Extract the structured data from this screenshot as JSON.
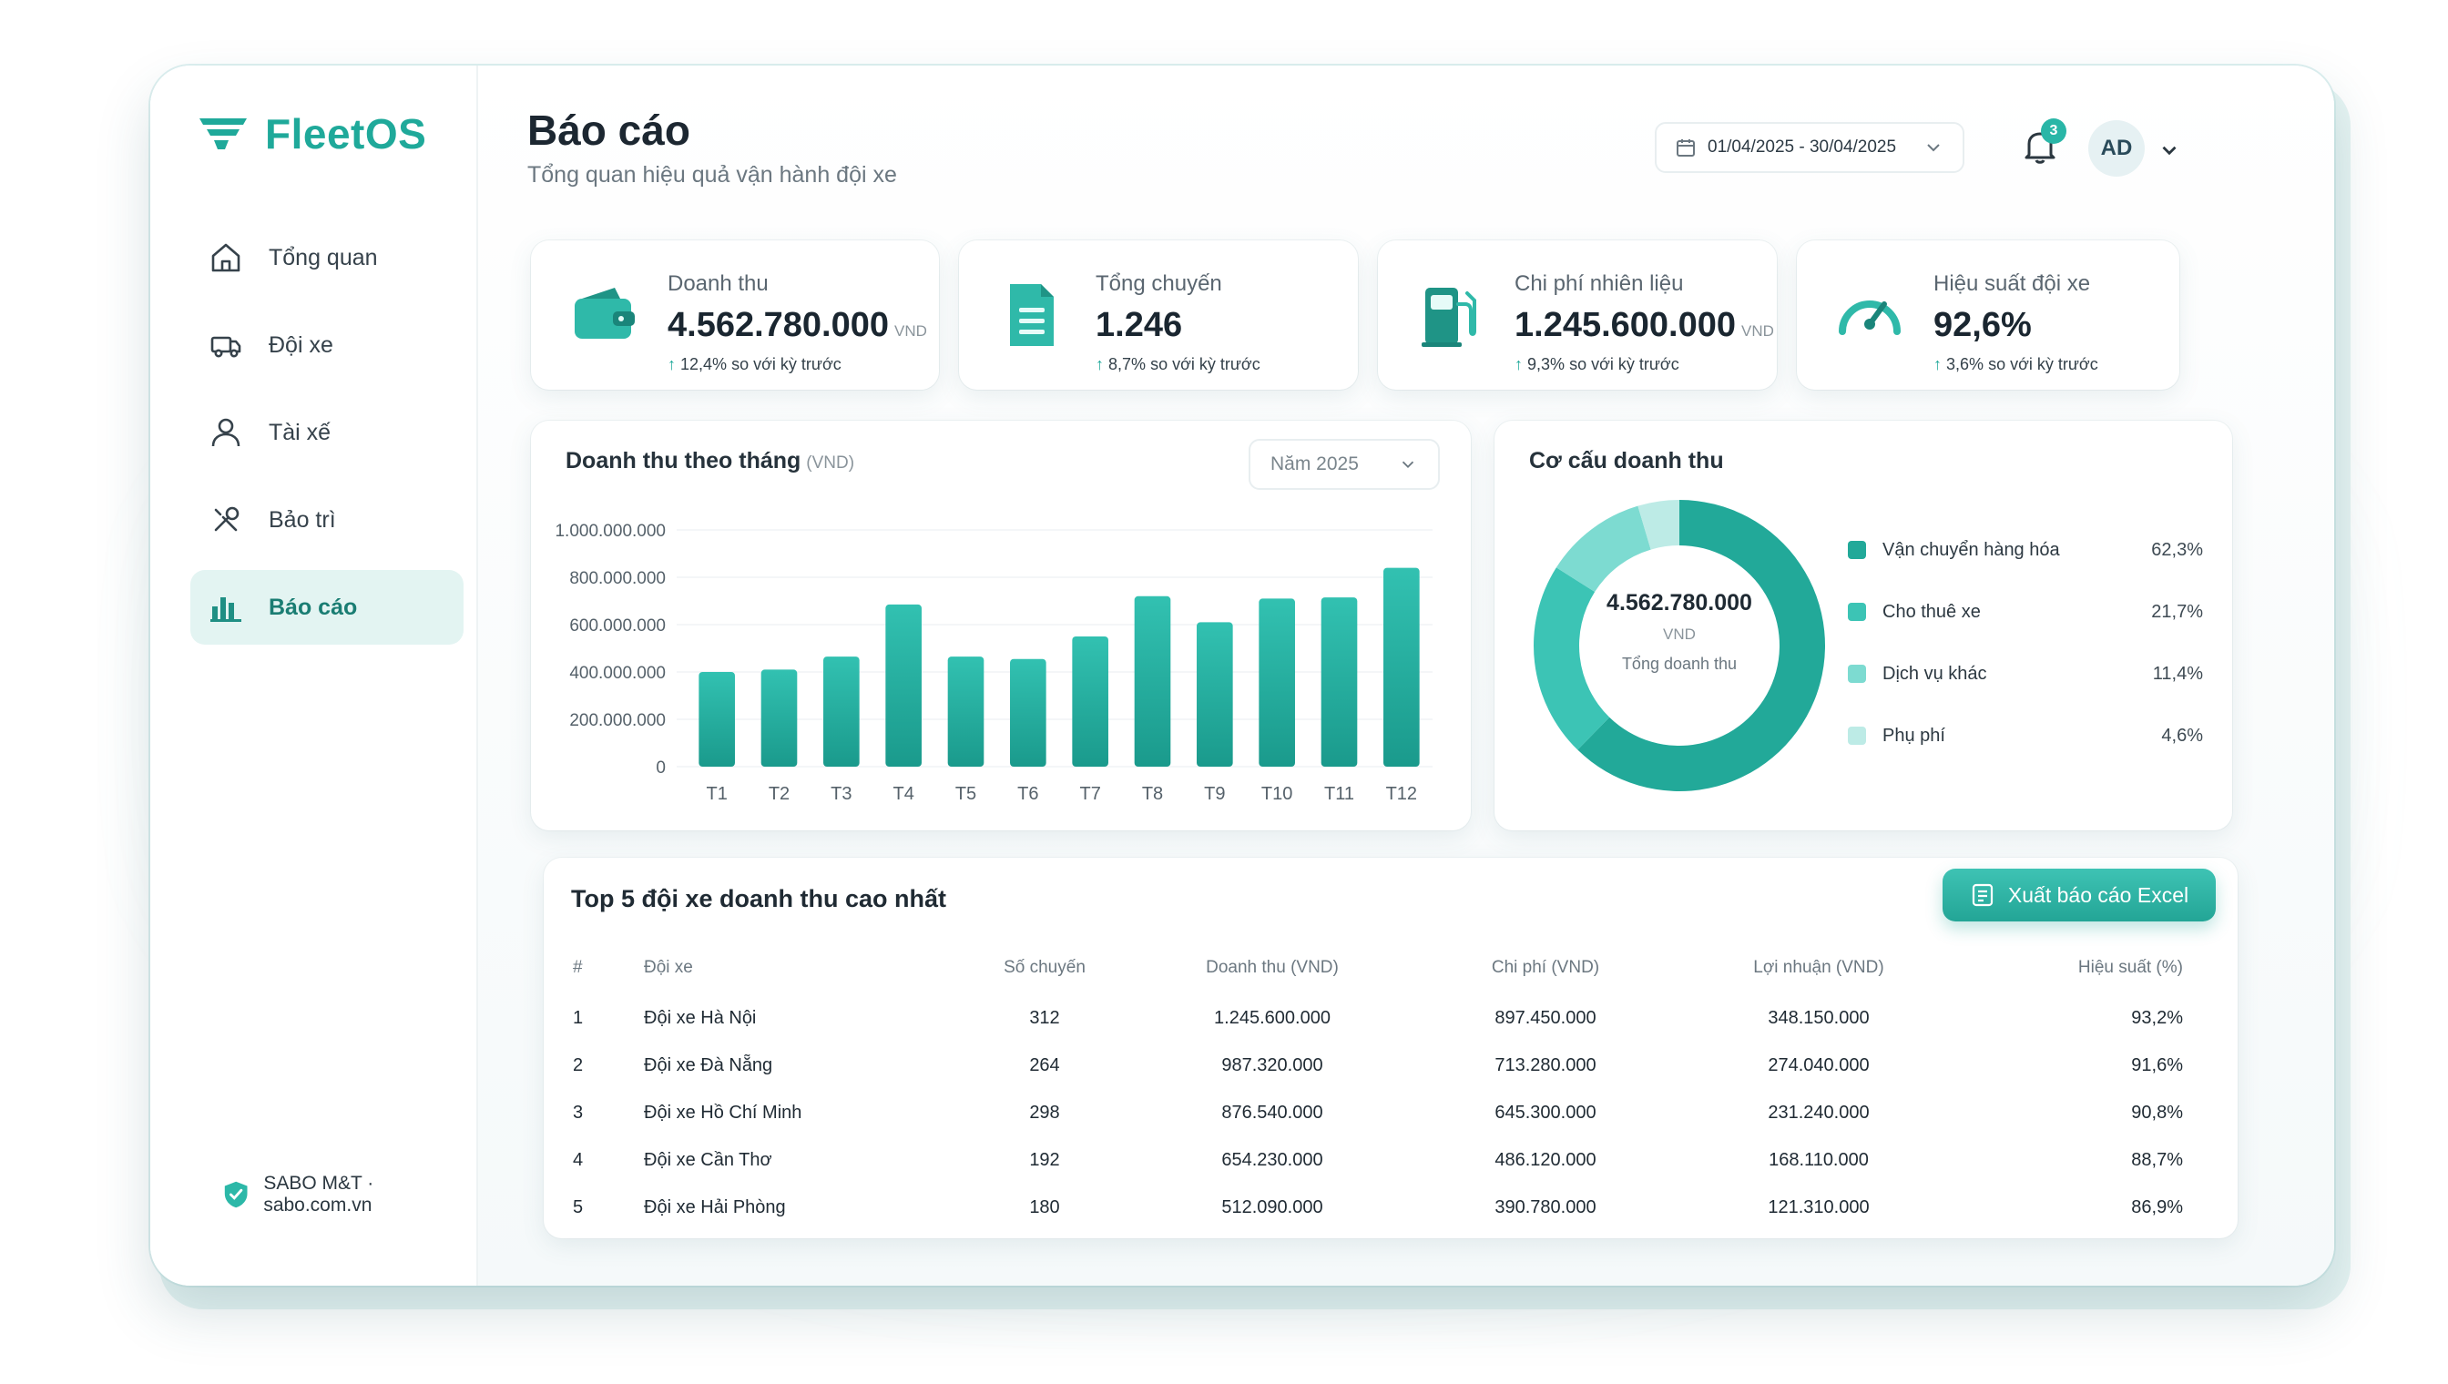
{
  "app": {
    "name": "FleetOS"
  },
  "sidebar": {
    "items": [
      {
        "label": "Tổng quan",
        "icon": "home-icon"
      },
      {
        "label": "Đội xe",
        "icon": "truck-icon"
      },
      {
        "label": "Tài xế",
        "icon": "user-icon"
      },
      {
        "label": "Bảo trì",
        "icon": "wrench-icon"
      },
      {
        "label": "Báo cáo",
        "icon": "bar-chart-icon",
        "active": true
      }
    ],
    "footer": "SABO M&T · sabo.com.vn"
  },
  "header": {
    "title": "Báo cáo",
    "subtitle": "Tổng quan hiệu quả vận hành đội xe",
    "date_range": "01/04/2025 - 30/04/2025",
    "notifications": "3",
    "avatar": "AD"
  },
  "kpis": [
    {
      "label": "Doanh thu",
      "value": "4.562.780.000",
      "unit": "VND",
      "delta": "12,4%",
      "delta_text": "so với kỳ trước",
      "icon": "wallet-icon"
    },
    {
      "label": "Tổng chuyến",
      "value": "1.246",
      "unit": "",
      "delta": "8,7%",
      "delta_text": "so với kỳ trước",
      "icon": "document-icon"
    },
    {
      "label": "Chi phí nhiên liệu",
      "value": "1.245.600.000",
      "unit": "VND",
      "delta": "9,3%",
      "delta_text": "so với kỳ trước",
      "icon": "fuel-pump-icon"
    },
    {
      "label": "Hiệu suất đội xe",
      "value": "92,6%",
      "unit": "",
      "delta": "3,6%",
      "delta_text": "so với kỳ trước",
      "icon": "gauge-icon"
    }
  ],
  "monthly_chart": {
    "title": "Doanh thu theo tháng",
    "unit_label": "(VND)",
    "year_select": "Năm 2025"
  },
  "chart_data": [
    {
      "type": "bar",
      "title": "Doanh thu theo tháng",
      "ylabel": "(VND)",
      "categories": [
        "T1",
        "T2",
        "T3",
        "T4",
        "T5",
        "T6",
        "T7",
        "T8",
        "T9",
        "T10",
        "T11",
        "T12"
      ],
      "values": [
        400000000,
        410000000,
        465000000,
        685000000,
        465000000,
        455000000,
        550000000,
        720000000,
        610000000,
        710000000,
        715000000,
        840000000
      ],
      "ylim": [
        0,
        1000000000
      ],
      "yticks": [
        "0",
        "200.000.000",
        "400.000.000",
        "600.000.000",
        "800.000.000",
        "1.000.000.000"
      ],
      "color": "#25ae9f"
    },
    {
      "type": "pie",
      "title": "Cơ cấu doanh thu",
      "center_value": "4.562.780.000",
      "center_unit": "VND",
      "center_label": "Tổng doanh thu",
      "categories": [
        "Vận chuyển hàng hóa",
        "Cho thuê xe",
        "Dịch vụ khác",
        "Phụ phí"
      ],
      "values": [
        62.3,
        21.7,
        11.4,
        4.6
      ],
      "labels": [
        "62,3%",
        "21,7%",
        "11,4%",
        "4,6%"
      ],
      "colors": [
        "#22a999",
        "#3cc4b5",
        "#7ddbd1",
        "#bdebe6"
      ]
    }
  ],
  "donut": {
    "title": "Cơ cấu doanh thu"
  },
  "top_table": {
    "title": "Top 5 đội xe doanh thu cao nhất",
    "export_label": "Xuất báo cáo Excel",
    "columns": [
      "#",
      "Đội xe",
      "Số chuyến",
      "Doanh thu (VND)",
      "Chi phí (VND)",
      "Lợi nhuận (VND)",
      "Hiệu suất (%)"
    ],
    "rows": [
      [
        "1",
        "Đội xe Hà Nội",
        "312",
        "1.245.600.000",
        "897.450.000",
        "348.150.000",
        "93,2%"
      ],
      [
        "2",
        "Đội xe Đà Nẵng",
        "264",
        "987.320.000",
        "713.280.000",
        "274.040.000",
        "91,6%"
      ],
      [
        "3",
        "Đội xe Hồ Chí Minh",
        "298",
        "876.540.000",
        "645.300.000",
        "231.240.000",
        "90,8%"
      ],
      [
        "4",
        "Đội xe Cần Thơ",
        "192",
        "654.230.000",
        "486.120.000",
        "168.110.000",
        "88,7%"
      ],
      [
        "5",
        "Đội xe Hải Phòng",
        "180",
        "512.090.000",
        "390.780.000",
        "121.310.000",
        "86,9%"
      ]
    ]
  }
}
